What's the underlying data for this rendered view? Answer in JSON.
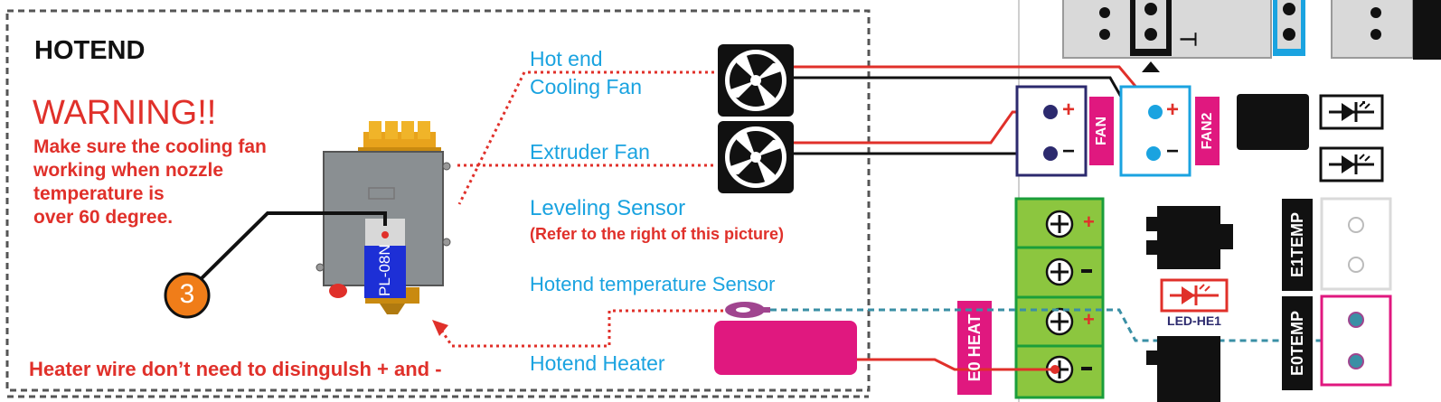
{
  "hotend_panel": {
    "title": "HOTEND",
    "warning_title": "WARNING!!",
    "warning_lines": [
      "Make sure the cooling fan",
      "working when nozzle",
      "temperature is",
      "over 60 degree."
    ],
    "heater_note": "Heater wire don’t need to disingulsh + and -",
    "badge_number": "3",
    "sensor_label": "PL-08N"
  },
  "labels": {
    "hotend_cooling_fan_1": "Hot end",
    "hotend_cooling_fan_2": "Cooling Fan",
    "extruder_fan": "Extruder  Fan",
    "leveling_sensor": "Leveling Sensor",
    "leveling_sensor_note": "(Refer to the right of this picture)",
    "hotend_temp_sensor": "Hotend temperature Sensor",
    "hotend_heater": "Hotend Heater"
  },
  "board": {
    "fan_label": "FAN",
    "fan2_label": "FAN2",
    "plus": "+",
    "minus": "−",
    "e0heat_label": "E0 HEAT",
    "e1temp_label": "E1TEMP",
    "e0temp_label": "E0TEMP",
    "led_label": "LED-HE1",
    "top_letter": "T"
  },
  "colors": {
    "red_text": "#e0302a",
    "blue_text": "#1aa3e0",
    "magenta": "#e0187f",
    "green_terminal": "#8cc63f",
    "green_border": "#1a9e3a",
    "navy": "#2c2a6e",
    "cyan_border": "#1aa3e0",
    "orange_badge": "#f07d19",
    "sensor_blue": "#1d2fd6"
  }
}
